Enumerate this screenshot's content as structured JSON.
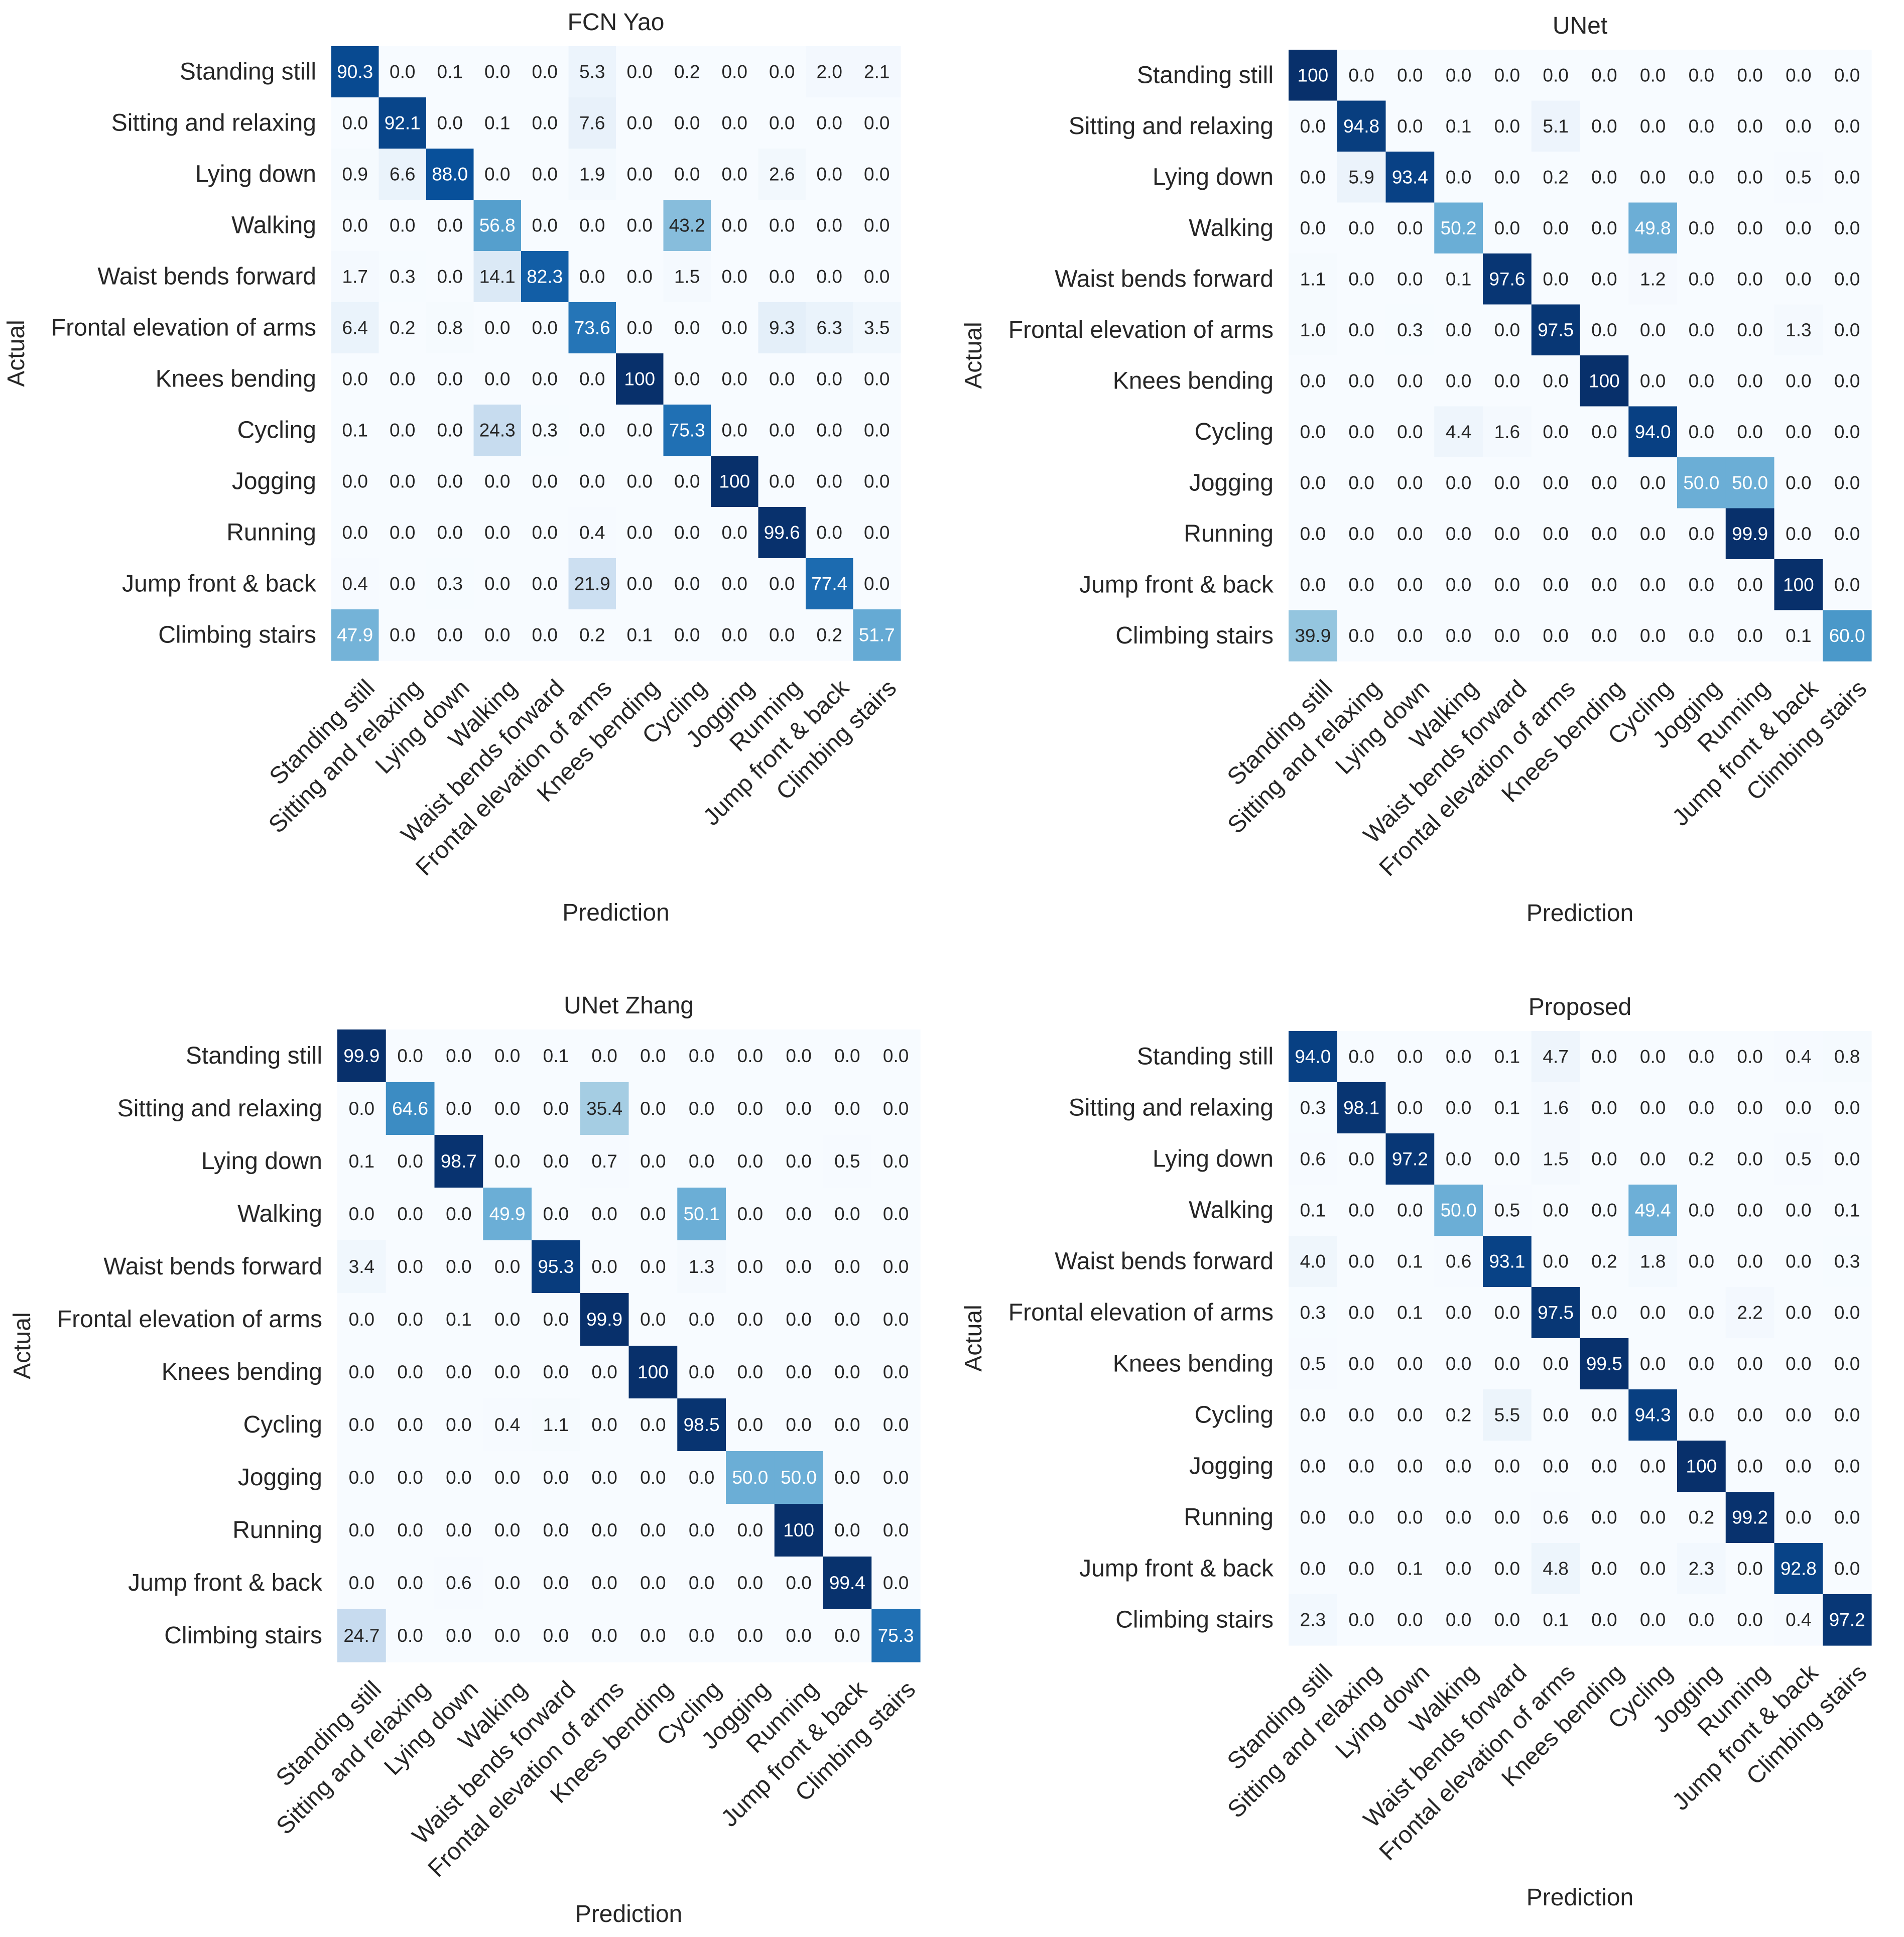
{
  "chart_data": [
    {
      "type": "heatmap",
      "title": "FCN Yao",
      "xlabel": "Prediction",
      "ylabel": "Actual",
      "rows": [
        "Standing still",
        "Sitting and relaxing",
        "Lying down",
        "Walking",
        "Waist bends forward",
        "Frontal elevation of arms",
        "Knees bending",
        "Cycling",
        "Jogging",
        "Running",
        "Jump front & back",
        "Climbing stairs"
      ],
      "columns": [
        "Standing still",
        "Sitting and relaxing",
        "Lying down",
        "Walking",
        "Waist bends forward",
        "Frontal elevation of arms",
        "Knees bending",
        "Cycling",
        "Jogging",
        "Running",
        "Jump front & back",
        "Climbing stairs"
      ],
      "values": [
        [
          "90.3",
          "0.0",
          "0.1",
          "0.0",
          "0.0",
          "5.3",
          "0.0",
          "0.2",
          "0.0",
          "0.0",
          "2.0",
          "2.1"
        ],
        [
          "0.0",
          "92.1",
          "0.0",
          "0.1",
          "0.0",
          "7.6",
          "0.0",
          "0.0",
          "0.0",
          "0.0",
          "0.0",
          "0.0"
        ],
        [
          "0.9",
          "6.6",
          "88.0",
          "0.0",
          "0.0",
          "1.9",
          "0.0",
          "0.0",
          "0.0",
          "2.6",
          "0.0",
          "0.0"
        ],
        [
          "0.0",
          "0.0",
          "0.0",
          "56.8",
          "0.0",
          "0.0",
          "0.0",
          "43.2",
          "0.0",
          "0.0",
          "0.0",
          "0.0"
        ],
        [
          "1.7",
          "0.3",
          "0.0",
          "14.1",
          "82.3",
          "0.0",
          "0.0",
          "1.5",
          "0.0",
          "0.0",
          "0.0",
          "0.0"
        ],
        [
          "6.4",
          "0.2",
          "0.8",
          "0.0",
          "0.0",
          "73.6",
          "0.0",
          "0.0",
          "0.0",
          "9.3",
          "6.3",
          "3.5"
        ],
        [
          "0.0",
          "0.0",
          "0.0",
          "0.0",
          "0.0",
          "0.0",
          "100",
          "0.0",
          "0.0",
          "0.0",
          "0.0",
          "0.0"
        ],
        [
          "0.1",
          "0.0",
          "0.0",
          "24.3",
          "0.3",
          "0.0",
          "0.0",
          "75.3",
          "0.0",
          "0.0",
          "0.0",
          "0.0"
        ],
        [
          "0.0",
          "0.0",
          "0.0",
          "0.0",
          "0.0",
          "0.0",
          "0.0",
          "0.0",
          "100",
          "0.0",
          "0.0",
          "0.0"
        ],
        [
          "0.0",
          "0.0",
          "0.0",
          "0.0",
          "0.0",
          "0.4",
          "0.0",
          "0.0",
          "0.0",
          "99.6",
          "0.0",
          "0.0"
        ],
        [
          "0.4",
          "0.0",
          "0.3",
          "0.0",
          "0.0",
          "21.9",
          "0.0",
          "0.0",
          "0.0",
          "0.0",
          "77.4",
          "0.0"
        ],
        [
          "47.9",
          "0.0",
          "0.0",
          "0.0",
          "0.0",
          "0.2",
          "0.1",
          "0.0",
          "0.0",
          "0.0",
          "0.2",
          "51.7"
        ]
      ]
    },
    {
      "type": "heatmap",
      "title": "UNet",
      "xlabel": "Prediction",
      "ylabel": "Actual",
      "rows": [
        "Standing still",
        "Sitting and relaxing",
        "Lying down",
        "Walking",
        "Waist bends forward",
        "Frontal elevation of arms",
        "Knees bending",
        "Cycling",
        "Jogging",
        "Running",
        "Jump front & back",
        "Climbing stairs"
      ],
      "columns": [
        "Standing still",
        "Sitting and relaxing",
        "Lying down",
        "Walking",
        "Waist bends forward",
        "Frontal elevation of arms",
        "Knees bending",
        "Cycling",
        "Jogging",
        "Running",
        "Jump front & back",
        "Climbing stairs"
      ],
      "values": [
        [
          "100",
          "0.0",
          "0.0",
          "0.0",
          "0.0",
          "0.0",
          "0.0",
          "0.0",
          "0.0",
          "0.0",
          "0.0",
          "0.0"
        ],
        [
          "0.0",
          "94.8",
          "0.0",
          "0.1",
          "0.0",
          "5.1",
          "0.0",
          "0.0",
          "0.0",
          "0.0",
          "0.0",
          "0.0"
        ],
        [
          "0.0",
          "5.9",
          "93.4",
          "0.0",
          "0.0",
          "0.2",
          "0.0",
          "0.0",
          "0.0",
          "0.0",
          "0.5",
          "0.0"
        ],
        [
          "0.0",
          "0.0",
          "0.0",
          "50.2",
          "0.0",
          "0.0",
          "0.0",
          "49.8",
          "0.0",
          "0.0",
          "0.0",
          "0.0"
        ],
        [
          "1.1",
          "0.0",
          "0.0",
          "0.1",
          "97.6",
          "0.0",
          "0.0",
          "1.2",
          "0.0",
          "0.0",
          "0.0",
          "0.0"
        ],
        [
          "1.0",
          "0.0",
          "0.3",
          "0.0",
          "0.0",
          "97.5",
          "0.0",
          "0.0",
          "0.0",
          "0.0",
          "1.3",
          "0.0"
        ],
        [
          "0.0",
          "0.0",
          "0.0",
          "0.0",
          "0.0",
          "0.0",
          "100",
          "0.0",
          "0.0",
          "0.0",
          "0.0",
          "0.0"
        ],
        [
          "0.0",
          "0.0",
          "0.0",
          "4.4",
          "1.6",
          "0.0",
          "0.0",
          "94.0",
          "0.0",
          "0.0",
          "0.0",
          "0.0"
        ],
        [
          "0.0",
          "0.0",
          "0.0",
          "0.0",
          "0.0",
          "0.0",
          "0.0",
          "0.0",
          "50.0",
          "50.0",
          "0.0",
          "0.0"
        ],
        [
          "0.0",
          "0.0",
          "0.0",
          "0.0",
          "0.0",
          "0.0",
          "0.0",
          "0.0",
          "0.0",
          "99.9",
          "0.0",
          "0.0"
        ],
        [
          "0.0",
          "0.0",
          "0.0",
          "0.0",
          "0.0",
          "0.0",
          "0.0",
          "0.0",
          "0.0",
          "0.0",
          "100",
          "0.0"
        ],
        [
          "39.9",
          "0.0",
          "0.0",
          "0.0",
          "0.0",
          "0.0",
          "0.0",
          "0.0",
          "0.0",
          "0.0",
          "0.1",
          "60.0"
        ]
      ]
    },
    {
      "type": "heatmap",
      "title": "UNet Zhang",
      "xlabel": "Prediction",
      "ylabel": "Actual",
      "rows": [
        "Standing still",
        "Sitting and relaxing",
        "Lying down",
        "Walking",
        "Waist bends forward",
        "Frontal elevation of arms",
        "Knees bending",
        "Cycling",
        "Jogging",
        "Running",
        "Jump front & back",
        "Climbing stairs"
      ],
      "columns": [
        "Standing still",
        "Sitting and relaxing",
        "Lying down",
        "Walking",
        "Waist bends forward",
        "Frontal elevation of arms",
        "Knees bending",
        "Cycling",
        "Jogging",
        "Running",
        "Jump front & back",
        "Climbing stairs"
      ],
      "values": [
        [
          "99.9",
          "0.0",
          "0.0",
          "0.0",
          "0.1",
          "0.0",
          "0.0",
          "0.0",
          "0.0",
          "0.0",
          "0.0",
          "0.0"
        ],
        [
          "0.0",
          "64.6",
          "0.0",
          "0.0",
          "0.0",
          "35.4",
          "0.0",
          "0.0",
          "0.0",
          "0.0",
          "0.0",
          "0.0"
        ],
        [
          "0.1",
          "0.0",
          "98.7",
          "0.0",
          "0.0",
          "0.7",
          "0.0",
          "0.0",
          "0.0",
          "0.0",
          "0.5",
          "0.0"
        ],
        [
          "0.0",
          "0.0",
          "0.0",
          "49.9",
          "0.0",
          "0.0",
          "0.0",
          "50.1",
          "0.0",
          "0.0",
          "0.0",
          "0.0"
        ],
        [
          "3.4",
          "0.0",
          "0.0",
          "0.0",
          "95.3",
          "0.0",
          "0.0",
          "1.3",
          "0.0",
          "0.0",
          "0.0",
          "0.0"
        ],
        [
          "0.0",
          "0.0",
          "0.1",
          "0.0",
          "0.0",
          "99.9",
          "0.0",
          "0.0",
          "0.0",
          "0.0",
          "0.0",
          "0.0"
        ],
        [
          "0.0",
          "0.0",
          "0.0",
          "0.0",
          "0.0",
          "0.0",
          "100",
          "0.0",
          "0.0",
          "0.0",
          "0.0",
          "0.0"
        ],
        [
          "0.0",
          "0.0",
          "0.0",
          "0.4",
          "1.1",
          "0.0",
          "0.0",
          "98.5",
          "0.0",
          "0.0",
          "0.0",
          "0.0"
        ],
        [
          "0.0",
          "0.0",
          "0.0",
          "0.0",
          "0.0",
          "0.0",
          "0.0",
          "0.0",
          "50.0",
          "50.0",
          "0.0",
          "0.0"
        ],
        [
          "0.0",
          "0.0",
          "0.0",
          "0.0",
          "0.0",
          "0.0",
          "0.0",
          "0.0",
          "0.0",
          "100",
          "0.0",
          "0.0"
        ],
        [
          "0.0",
          "0.0",
          "0.6",
          "0.0",
          "0.0",
          "0.0",
          "0.0",
          "0.0",
          "0.0",
          "0.0",
          "99.4",
          "0.0"
        ],
        [
          "24.7",
          "0.0",
          "0.0",
          "0.0",
          "0.0",
          "0.0",
          "0.0",
          "0.0",
          "0.0",
          "0.0",
          "0.0",
          "75.3"
        ]
      ]
    },
    {
      "type": "heatmap",
      "title": "Proposed",
      "xlabel": "Prediction",
      "ylabel": "Actual",
      "rows": [
        "Standing still",
        "Sitting and relaxing",
        "Lying down",
        "Walking",
        "Waist bends forward",
        "Frontal elevation of arms",
        "Knees bending",
        "Cycling",
        "Jogging",
        "Running",
        "Jump front & back",
        "Climbing stairs"
      ],
      "columns": [
        "Standing still",
        "Sitting and relaxing",
        "Lying down",
        "Walking",
        "Waist bends forward",
        "Frontal elevation of arms",
        "Knees bending",
        "Cycling",
        "Jogging",
        "Running",
        "Jump front & back",
        "Climbing stairs"
      ],
      "values": [
        [
          "94.0",
          "0.0",
          "0.0",
          "0.0",
          "0.1",
          "4.7",
          "0.0",
          "0.0",
          "0.0",
          "0.0",
          "0.4",
          "0.8"
        ],
        [
          "0.3",
          "98.1",
          "0.0",
          "0.0",
          "0.1",
          "1.6",
          "0.0",
          "0.0",
          "0.0",
          "0.0",
          "0.0",
          "0.0"
        ],
        [
          "0.6",
          "0.0",
          "97.2",
          "0.0",
          "0.0",
          "1.5",
          "0.0",
          "0.0",
          "0.2",
          "0.0",
          "0.5",
          "0.0"
        ],
        [
          "0.1",
          "0.0",
          "0.0",
          "50.0",
          "0.5",
          "0.0",
          "0.0",
          "49.4",
          "0.0",
          "0.0",
          "0.0",
          "0.1"
        ],
        [
          "4.0",
          "0.0",
          "0.1",
          "0.6",
          "93.1",
          "0.0",
          "0.2",
          "1.8",
          "0.0",
          "0.0",
          "0.0",
          "0.3"
        ],
        [
          "0.3",
          "0.0",
          "0.1",
          "0.0",
          "0.0",
          "97.5",
          "0.0",
          "0.0",
          "0.0",
          "2.2",
          "0.0",
          "0.0"
        ],
        [
          "0.5",
          "0.0",
          "0.0",
          "0.0",
          "0.0",
          "0.0",
          "99.5",
          "0.0",
          "0.0",
          "0.0",
          "0.0",
          "0.0"
        ],
        [
          "0.0",
          "0.0",
          "0.0",
          "0.2",
          "5.5",
          "0.0",
          "0.0",
          "94.3",
          "0.0",
          "0.0",
          "0.0",
          "0.0"
        ],
        [
          "0.0",
          "0.0",
          "0.0",
          "0.0",
          "0.0",
          "0.0",
          "0.0",
          "0.0",
          "100",
          "0.0",
          "0.0",
          "0.0"
        ],
        [
          "0.0",
          "0.0",
          "0.0",
          "0.0",
          "0.0",
          "0.6",
          "0.0",
          "0.0",
          "0.2",
          "99.2",
          "0.0",
          "0.0"
        ],
        [
          "0.0",
          "0.0",
          "0.1",
          "0.0",
          "0.0",
          "4.8",
          "0.0",
          "0.0",
          "2.3",
          "0.0",
          "92.8",
          "0.0"
        ],
        [
          "2.3",
          "0.0",
          "0.0",
          "0.0",
          "0.0",
          "0.1",
          "0.0",
          "0.0",
          "0.0",
          "0.0",
          "0.4",
          "97.2"
        ]
      ]
    }
  ]
}
